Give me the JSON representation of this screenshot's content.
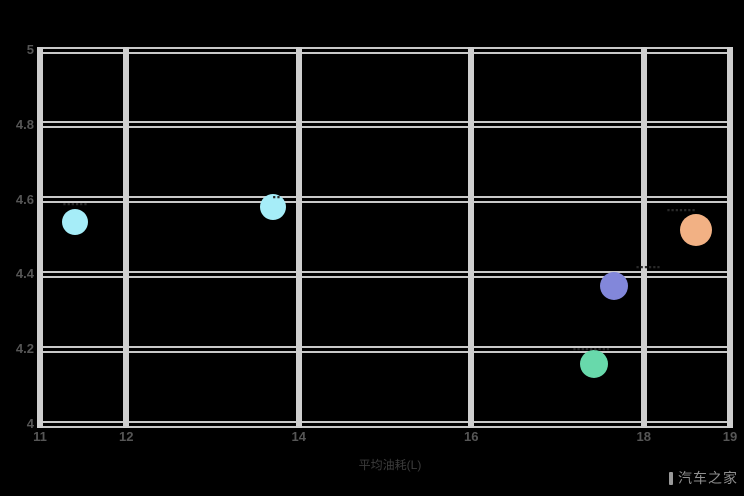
{
  "chart_data": {
    "type": "scatter",
    "title": "",
    "xlabel": "平均油耗(L)",
    "ylabel": "",
    "xlim": [
      11,
      19
    ],
    "ylim": [
      4,
      5
    ],
    "x_ticks": [
      "11",
      "12",
      "14",
      "16",
      "18",
      "19"
    ],
    "x_tick_values": [
      11,
      12,
      14,
      16,
      18,
      19
    ],
    "y_ticks": [
      "5",
      "4.8",
      "4.6",
      "4.4",
      "4.2",
      "4"
    ],
    "y_tick_values": [
      5,
      4.8,
      4.6,
      4.4,
      4.2,
      4
    ],
    "grid": true,
    "legend": "none",
    "background_color": "#000000",
    "gridline_color": "#c9c9c9",
    "tick_label_color": "#565656",
    "point_label_color": "#2a2a2a",
    "points": [
      {
        "x": 11.4,
        "y": 4.54,
        "r": 13,
        "color": "#a6edf8",
        "label": "▪▪▪▪▪▪"
      },
      {
        "x": 13.7,
        "y": 4.58,
        "r": 13,
        "color": "#a6edf8",
        "label": "▪▪"
      },
      {
        "x": 18.6,
        "y": 4.52,
        "r": 16,
        "color": "#f2b184",
        "label": "▪▪▪▪▪▪▪"
      },
      {
        "x": 17.65,
        "y": 4.37,
        "r": 14,
        "color": "#8287da",
        "label": "▪▪▪▪▪▪"
      },
      {
        "x": 17.42,
        "y": 4.16,
        "r": 14,
        "color": "#68d9ab",
        "label": "▪▪▪▪▪▪▪▪▪"
      }
    ]
  },
  "watermark": {
    "text": "汽车之家"
  }
}
